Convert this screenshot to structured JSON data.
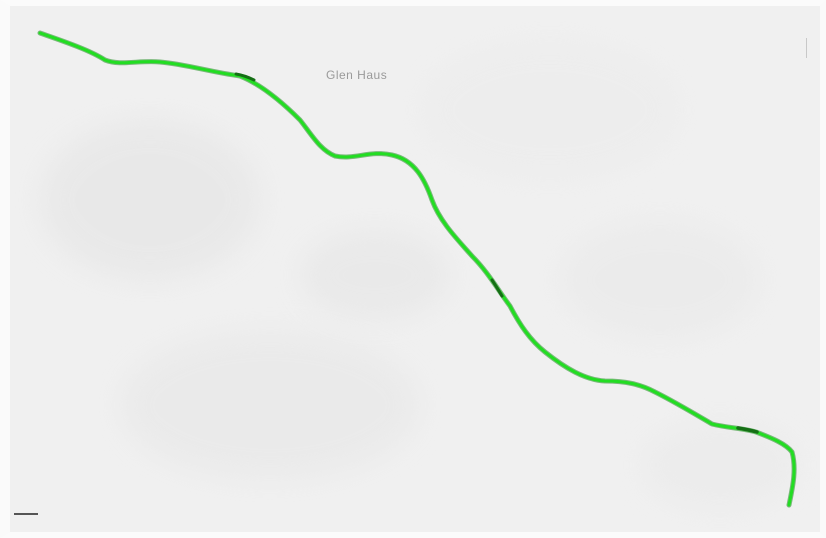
{
  "map": {
    "place_label": "Glen Haus",
    "place_label_small": "",
    "corner_label": "",
    "scale_label": "",
    "route_color": "#22dd22",
    "route_outline_color": "#1a8a1a",
    "background_color": "#f0f0f0"
  }
}
